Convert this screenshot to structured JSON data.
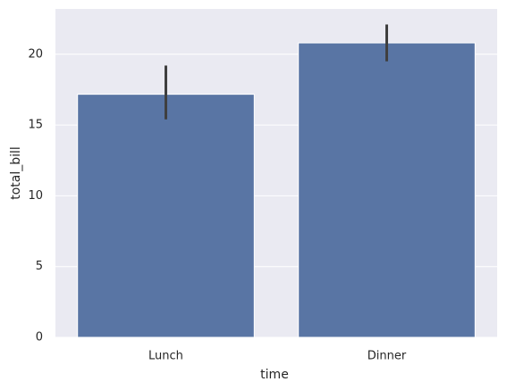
{
  "chart_data": {
    "type": "bar",
    "categories": [
      "Lunch",
      "Dinner"
    ],
    "values": [
      17.17,
      20.8
    ],
    "ci": [
      [
        15.4,
        19.2
      ],
      [
        19.5,
        22.1
      ]
    ],
    "color": "#5975a4",
    "error_color": "#3f3f3f",
    "x_label": "time",
    "y_label": "total_bill",
    "ylim": [
      0,
      23.2
    ],
    "yticks": [
      0,
      5,
      10,
      15,
      20
    ],
    "grid": true
  }
}
